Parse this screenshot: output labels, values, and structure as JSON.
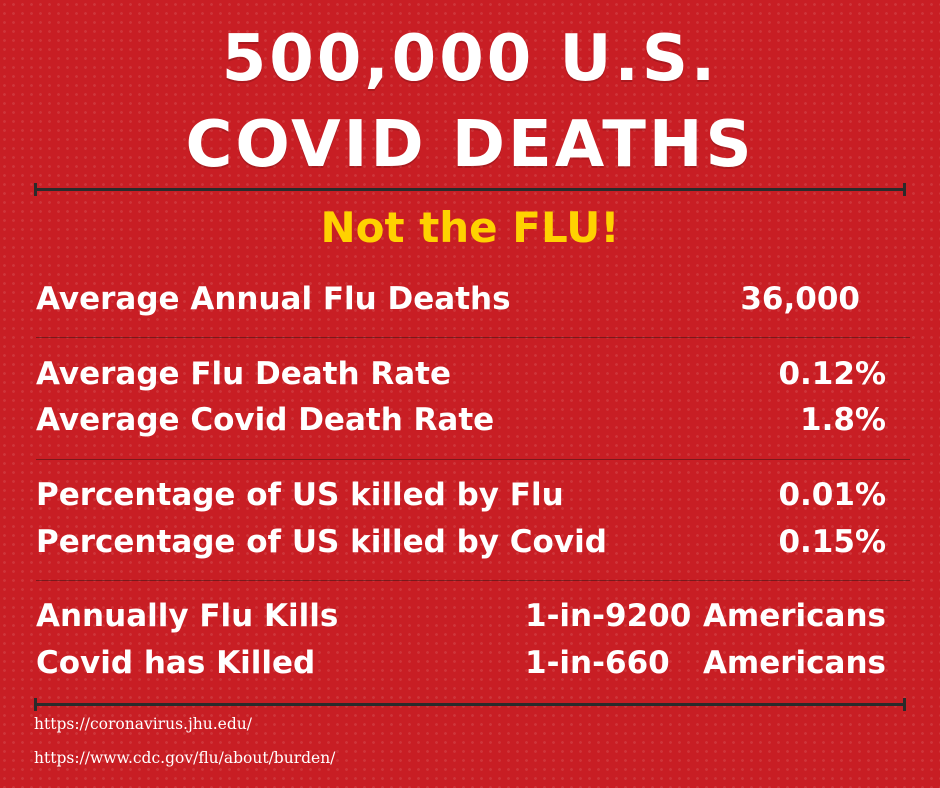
{
  "headline": {
    "line1": "500,000 U.S.",
    "line2": "COVID DEATHS"
  },
  "subtitle": "Not the FLU!",
  "rows": [
    {
      "label": "Average Annual Flu Deaths",
      "value": "36,000"
    },
    {
      "label": "Average Flu Death Rate",
      "value": "0.12%"
    },
    {
      "label": "Average Covid Death Rate",
      "value": "1.8%"
    },
    {
      "label": "Percentage of US killed by Flu",
      "value": "0.01%"
    },
    {
      "label": "Percentage of US killed by Covid",
      "value": "0.15%"
    },
    {
      "label": "Annually Flu Kills",
      "value": "1-in-9200",
      "unit": "Americans"
    },
    {
      "label": "Covid has Killed",
      "value": "1-in-660",
      "unit": "Americans"
    }
  ],
  "sources": [
    "https://coronavirus.jhu.edu/",
    "https://www.cdc.gov/flu/about/burden/"
  ],
  "colors": {
    "background": "#c81e24",
    "subtitle": "#ffd200",
    "text": "#ffffff",
    "rule": "#2b2b2b"
  }
}
